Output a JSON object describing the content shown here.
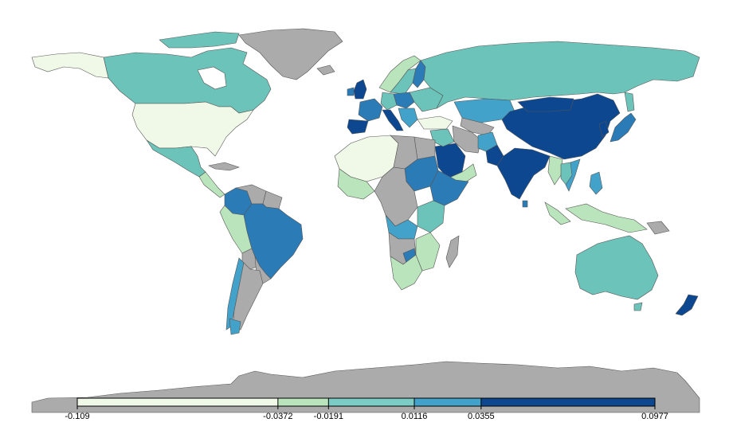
{
  "colors": {
    "no_data": "#ababab",
    "ocean": "#ffffff",
    "border": "#555555",
    "bin1": "#f0f9e8",
    "bin2": "#bae4bc",
    "bin3": "#7bccc4",
    "bin4": "#6cc3b9",
    "bin5": "#43a2ca",
    "bin6": "#2b7bb7",
    "bin7": "#0c4790"
  },
  "legend": {
    "breaks": [
      "-0.109",
      "-0.0372",
      "-0.0191",
      "0.0116",
      "0.0355",
      "0.0977"
    ],
    "segments": [
      {
        "from": -0.109,
        "to": -0.0372,
        "color": "#f0f9e8"
      },
      {
        "from": -0.0372,
        "to": -0.0191,
        "color": "#bae4bc"
      },
      {
        "from": -0.0191,
        "to": 0.0116,
        "color": "#7bccc4"
      },
      {
        "from": 0.0116,
        "to": 0.0355,
        "color": "#43a2ca"
      },
      {
        "from": 0.0355,
        "to": 0.0977,
        "color": "#0c4790"
      }
    ]
  }
}
